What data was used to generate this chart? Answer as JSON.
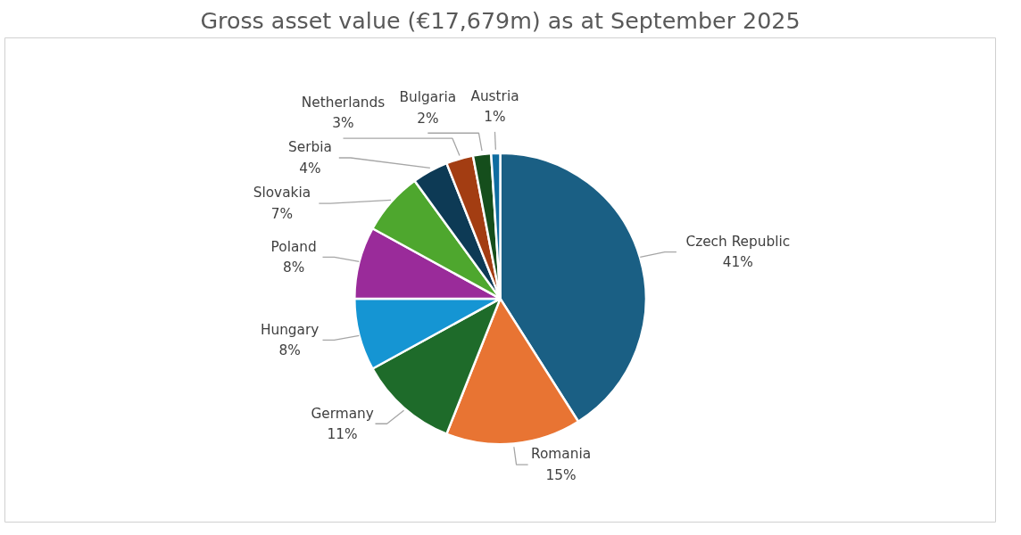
{
  "chart_data": {
    "type": "pie",
    "title": "Gross asset value (€17,679m) as at September 2025",
    "categories": [
      "Czech Republic",
      "Romania",
      "Germany",
      "Hungary",
      "Poland",
      "Slovakia",
      "Serbia",
      "Netherlands",
      "Bulgaria",
      "Austria"
    ],
    "values": [
      41,
      15,
      11,
      8,
      8,
      7,
      4,
      3,
      2,
      1
    ],
    "value_labels": [
      "41%",
      "15%",
      "11%",
      "8%",
      "8%",
      "7%",
      "4%",
      "3%",
      "2%",
      "1%"
    ],
    "colors": [
      "#1a5f84",
      "#e87433",
      "#1e6b2a",
      "#1595d3",
      "#9a2b9a",
      "#4ea72e",
      "#0d3a55",
      "#a33d12",
      "#154e1c",
      "#0f6da0"
    ]
  }
}
